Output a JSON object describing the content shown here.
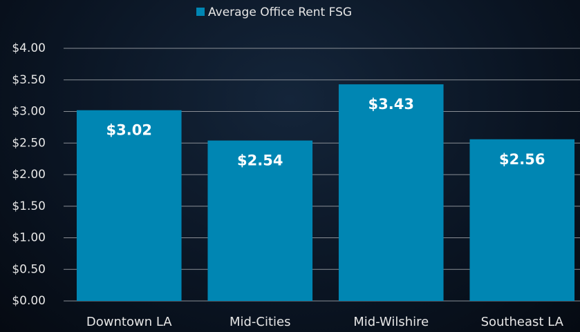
{
  "chart_data": {
    "type": "bar",
    "legend": "Average Office Rent FSG",
    "categories": [
      "Downtown LA",
      "Mid-Cities",
      "Mid-Wilshire",
      "Southeast LA"
    ],
    "values": [
      3.02,
      2.54,
      3.43,
      2.56
    ],
    "value_labels": [
      "$3.02",
      "$2.54",
      "$3.43",
      "$2.56"
    ],
    "color": "#0086b3",
    "ylim": [
      0,
      4
    ],
    "yticks": [
      {
        "value": 0,
        "label": "$0.00"
      },
      {
        "value": 0.5,
        "label": "$0.50"
      },
      {
        "value": 1,
        "label": "$1.00"
      },
      {
        "value": 1.5,
        "label": "$1.50"
      },
      {
        "value": 2,
        "label": "$2.00"
      },
      {
        "value": 2.5,
        "label": "$2.50"
      },
      {
        "value": 3,
        "label": "$3.00"
      },
      {
        "value": 3.5,
        "label": "$3.50"
      },
      {
        "value": 4,
        "label": "$4.00"
      }
    ],
    "grid": true
  }
}
